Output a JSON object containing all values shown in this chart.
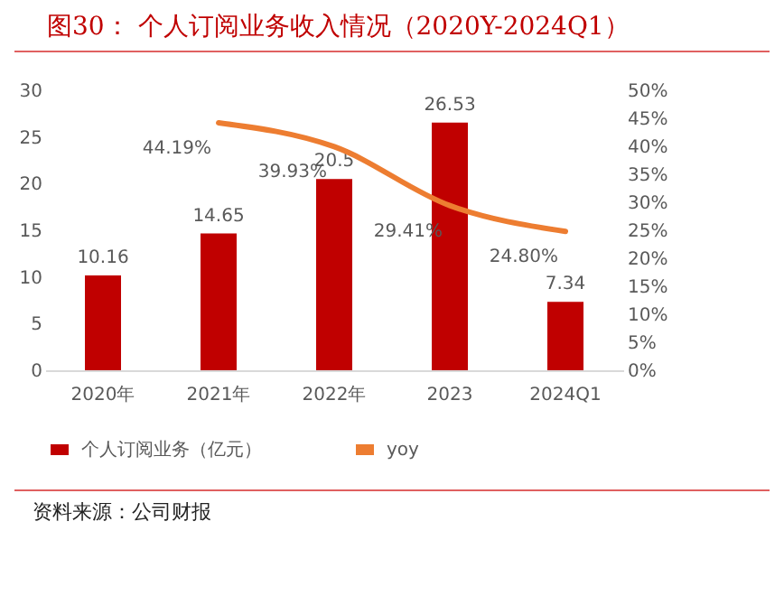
{
  "chart_data": {
    "type": "bar",
    "title": "图30：  个人订阅业务收入情况（2020Y-2024Q1）",
    "categories": [
      "2020年",
      "2021年",
      "2022年",
      "2023",
      "2024Q1"
    ],
    "series": [
      {
        "name": "个人订阅业务（亿元）",
        "color": "#c00000",
        "values": [
          10.16,
          14.65,
          20.5,
          26.53,
          7.34
        ],
        "value_labels": [
          "10.16",
          "14.65",
          "20.5",
          "26.53",
          "7.34"
        ]
      },
      {
        "name": "yoy",
        "type": "line",
        "axis": "y2",
        "color": "#ed7d31",
        "values": [
          null,
          44.19,
          39.93,
          29.41,
          24.8
        ],
        "value_labels": [
          null,
          "44.19%",
          "39.93%",
          "29.41%",
          "24.80%"
        ]
      }
    ],
    "ylim": [
      0,
      30
    ],
    "yticks": [
      0,
      5,
      10,
      15,
      20,
      25,
      30
    ],
    "y2lim": [
      0,
      50
    ],
    "y2ticks": [
      {
        "value": 0,
        "label": "0%"
      },
      {
        "value": 5,
        "label": "5%"
      },
      {
        "value": 10,
        "label": "10%"
      },
      {
        "value": 15,
        "label": "15%"
      },
      {
        "value": 20,
        "label": "20%"
      },
      {
        "value": 25,
        "label": "25%"
      },
      {
        "value": 30,
        "label": "30%"
      },
      {
        "value": 35,
        "label": "35%"
      },
      {
        "value": 40,
        "label": "40%"
      },
      {
        "value": 45,
        "label": "45%"
      },
      {
        "value": 50,
        "label": "50%"
      }
    ],
    "legend": "bottom",
    "annotations": [
      "资料来源：公司财报"
    ]
  }
}
